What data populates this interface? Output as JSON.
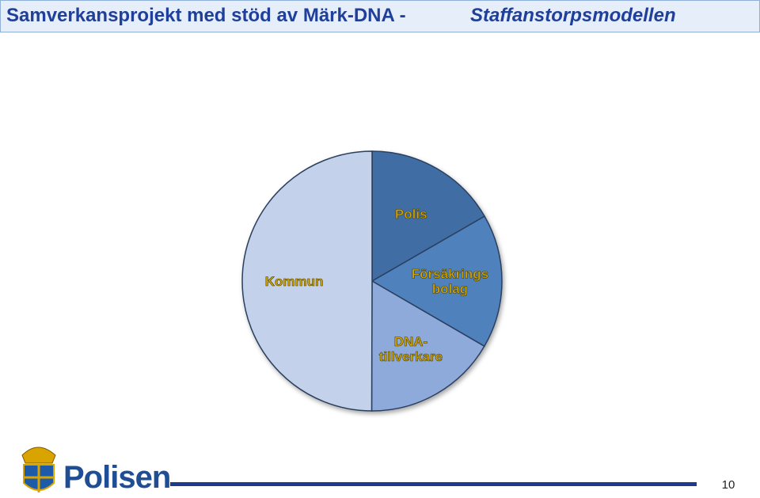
{
  "chart_data": {
    "type": "pie",
    "title": "Samverkansprojekt med stöd av Märk-DNA  -",
    "subtitle": "Staffanstorpsmodellen",
    "categories": [
      "Polis",
      "Försäkrings\nbolag",
      "DNA-\ntillverkare",
      "Kommun"
    ],
    "values": [
      16.7,
      16.7,
      16.7,
      50
    ],
    "colors": [
      "#3f6da4",
      "#4f81bd",
      "#8eaadb",
      "#c3d1ea"
    ]
  },
  "footer": {
    "logo_text": "Polisen",
    "page_number": "10"
  }
}
